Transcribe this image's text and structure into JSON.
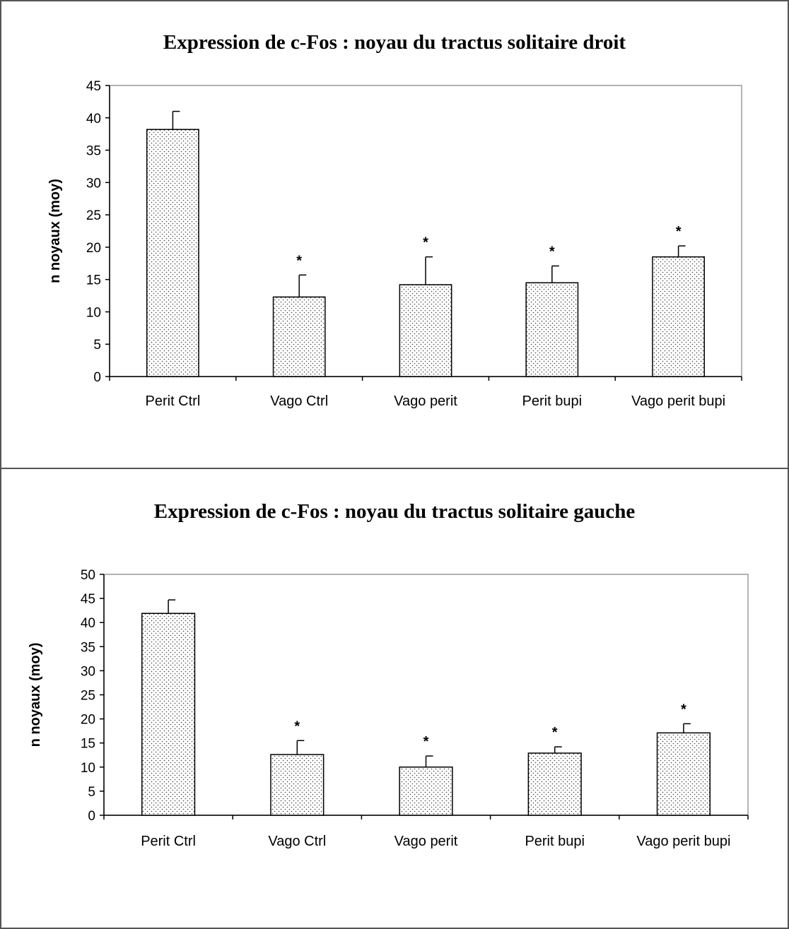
{
  "colors": {
    "frame": "#555555",
    "plot_border": "#9a9a9a",
    "bar_stroke": "#000000",
    "bar_dots": "#444444",
    "background": "#ffffff"
  },
  "chart_data": [
    {
      "type": "bar",
      "title": "Expression de c-Fos : noyau du tractus solitaire droit",
      "xlabel": "",
      "ylabel": "n noyaux (moy)",
      "categories": [
        "Perit Ctrl",
        "Vago Ctrl",
        "Vago perit",
        "Perit bupi",
        "Vago perit bupi"
      ],
      "values": [
        38.2,
        12.3,
        14.2,
        14.5,
        18.5
      ],
      "error_bars": [
        2.8,
        3.4,
        4.3,
        2.6,
        1.7
      ],
      "significance": [
        "",
        "*",
        "*",
        "*",
        "*"
      ],
      "ylim": [
        0,
        45
      ],
      "yticks": [
        0,
        5,
        10,
        15,
        20,
        25,
        30,
        35,
        40,
        45
      ],
      "grid": false,
      "legend": "none",
      "bar_fill": "dotted"
    },
    {
      "type": "bar",
      "title": "Expression de c-Fos : noyau du tractus solitaire gauche",
      "xlabel": "",
      "ylabel": "n noyaux (moy)",
      "categories": [
        "Perit Ctrl",
        "Vago Ctrl",
        "Vago perit",
        "Perit bupi",
        "Vago perit bupi"
      ],
      "values": [
        41.9,
        12.6,
        10.0,
        12.9,
        17.1
      ],
      "error_bars": [
        2.8,
        2.9,
        2.3,
        1.3,
        1.9
      ],
      "significance": [
        "",
        "*",
        "*",
        "*",
        "*"
      ],
      "ylim": [
        0,
        50
      ],
      "yticks": [
        0,
        5,
        10,
        15,
        20,
        25,
        30,
        35,
        40,
        45,
        50
      ],
      "grid": false,
      "legend": "none",
      "bar_fill": "dotted"
    }
  ]
}
